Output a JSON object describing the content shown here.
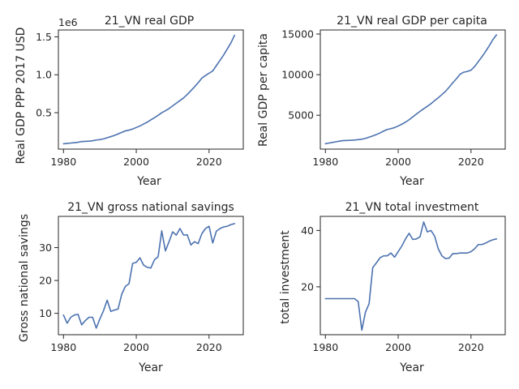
{
  "chart_data": [
    {
      "type": "line",
      "title": "21_VN real GDP",
      "xlabel": "Year",
      "ylabel": "Real GDP PPP 2017 USD",
      "offset_text": "1e6",
      "xlim": [
        1978.6,
        2029.4
      ],
      "ylim": [
        0.02,
        1.59
      ],
      "xticks": [
        1980,
        2000,
        2020
      ],
      "xticklabels": [
        "1980",
        "2000",
        "2020"
      ],
      "yticks": [
        0.5,
        1.0,
        1.5
      ],
      "yticklabels": [
        "0.5",
        "1.0",
        "1.5"
      ],
      "series": [
        {
          "x": [
            1980,
            1981,
            1982,
            1983,
            1984,
            1985,
            1986,
            1987,
            1988,
            1989,
            1990,
            1991,
            1992,
            1993,
            1994,
            1995,
            1996,
            1997,
            1998,
            1999,
            2000,
            2001,
            2002,
            2003,
            2004,
            2005,
            2006,
            2007,
            2008,
            2009,
            2010,
            2011,
            2012,
            2013,
            2014,
            2015,
            2016,
            2017,
            2018,
            2019,
            2020,
            2021,
            2022,
            2023,
            2024,
            2025,
            2026,
            2027
          ],
          "values": [
            0.09,
            0.095,
            0.1,
            0.105,
            0.11,
            0.12,
            0.122,
            0.125,
            0.13,
            0.14,
            0.145,
            0.155,
            0.17,
            0.185,
            0.2,
            0.22,
            0.24,
            0.26,
            0.27,
            0.285,
            0.305,
            0.325,
            0.35,
            0.375,
            0.405,
            0.435,
            0.465,
            0.5,
            0.525,
            0.555,
            0.59,
            0.625,
            0.66,
            0.695,
            0.74,
            0.79,
            0.84,
            0.895,
            0.955,
            0.99,
            1.02,
            1.05,
            1.12,
            1.19,
            1.26,
            1.34,
            1.42,
            1.52
          ]
        }
      ]
    },
    {
      "type": "line",
      "title": "21_VN real GDP per capita",
      "xlabel": "Year",
      "ylabel": "Real GDP per capita",
      "xlim": [
        1978.6,
        2029.4
      ],
      "ylim": [
        830,
        15500
      ],
      "xticks": [
        1980,
        2000,
        2020
      ],
      "xticklabels": [
        "1980",
        "2000",
        "2020"
      ],
      "yticks": [
        5000,
        10000,
        15000
      ],
      "yticklabels": [
        "5000",
        "10000",
        "15000"
      ],
      "series": [
        {
          "x": [
            1980,
            1981,
            1982,
            1983,
            1984,
            1985,
            1986,
            1987,
            1988,
            1989,
            1990,
            1991,
            1992,
            1993,
            1994,
            1995,
            1996,
            1997,
            1998,
            1999,
            2000,
            2001,
            2002,
            2003,
            2004,
            2005,
            2006,
            2007,
            2008,
            2009,
            2010,
            2011,
            2012,
            2013,
            2014,
            2015,
            2016,
            2017,
            2018,
            2019,
            2020,
            2021,
            2022,
            2023,
            2024,
            2025,
            2026,
            2027
          ],
          "values": [
            1500,
            1580,
            1660,
            1740,
            1820,
            1880,
            1900,
            1920,
            1950,
            2000,
            2050,
            2150,
            2300,
            2450,
            2620,
            2820,
            3050,
            3250,
            3350,
            3480,
            3680,
            3900,
            4150,
            4450,
            4800,
            5150,
            5480,
            5800,
            6100,
            6420,
            6800,
            7150,
            7550,
            7950,
            8450,
            9000,
            9500,
            10050,
            10300,
            10400,
            10550,
            11000,
            11600,
            12200,
            12850,
            13550,
            14300,
            14900
          ]
        }
      ]
    },
    {
      "type": "line",
      "title": "21_VN gross national savings",
      "xlabel": "Year",
      "ylabel": "Gross national savings",
      "xlim": [
        1978.6,
        2029.4
      ],
      "ylim": [
        3.5,
        39.5
      ],
      "xticks": [
        1980,
        2000,
        2020
      ],
      "xticklabels": [
        "1980",
        "2000",
        "2020"
      ],
      "yticks": [
        10,
        20,
        30
      ],
      "yticklabels": [
        "10",
        "20",
        "30"
      ],
      "series": [
        {
          "x": [
            1980,
            1981,
            1982,
            1983,
            1984,
            1985,
            1986,
            1987,
            1988,
            1989,
            1990,
            1991,
            1992,
            1993,
            1994,
            1995,
            1996,
            1997,
            1998,
            1999,
            2000,
            2001,
            2002,
            2003,
            2004,
            2005,
            2006,
            2007,
            2008,
            2009,
            2010,
            2011,
            2012,
            2013,
            2014,
            2015,
            2016,
            2017,
            2018,
            2019,
            2020,
            2021,
            2022,
            2023,
            2024,
            2025,
            2026,
            2027
          ],
          "values": [
            9.5,
            7.0,
            8.8,
            9.5,
            9.7,
            6.5,
            7.8,
            8.8,
            8.8,
            5.5,
            8.3,
            10.8,
            14.0,
            10.6,
            11.0,
            11.3,
            15.8,
            18.2,
            19.0,
            25.2,
            25.5,
            26.9,
            24.7,
            24.0,
            23.8,
            26.3,
            27.2,
            35.1,
            29.0,
            31.8,
            34.8,
            33.8,
            35.8,
            33.8,
            33.9,
            30.8,
            31.8,
            31.2,
            34.2,
            35.8,
            36.5,
            31.4,
            35.0,
            35.8,
            36.3,
            36.5,
            37.0,
            37.3
          ]
        }
      ]
    },
    {
      "type": "line",
      "title": "21_VN total investment",
      "xlabel": "Year",
      "ylabel": "total investment",
      "xlim": [
        1978.6,
        2029.4
      ],
      "ylim": [
        3.0,
        45.0
      ],
      "xticks": [
        1980,
        2000,
        2020
      ],
      "xticklabels": [
        "1980",
        "2000",
        "2020"
      ],
      "yticks": [
        20,
        40
      ],
      "yticklabels": [
        "20",
        "40"
      ],
      "series": [
        {
          "x": [
            1980,
            1981,
            1982,
            1983,
            1984,
            1985,
            1986,
            1987,
            1988,
            1989,
            1990,
            1991,
            1992,
            1993,
            1994,
            1995,
            1996,
            1997,
            1998,
            1999,
            2000,
            2001,
            2002,
            2003,
            2004,
            2005,
            2006,
            2007,
            2008,
            2009,
            2010,
            2011,
            2012,
            2013,
            2014,
            2015,
            2016,
            2017,
            2018,
            2019,
            2020,
            2021,
            2022,
            2023,
            2024,
            2025,
            2026,
            2027
          ],
          "values": [
            15.8,
            15.8,
            15.8,
            15.8,
            15.8,
            15.8,
            15.8,
            15.8,
            15.8,
            14.8,
            4.6,
            11.0,
            14.0,
            26.8,
            28.5,
            30.3,
            31.0,
            31.0,
            32.0,
            30.5,
            32.5,
            34.5,
            37.0,
            39.0,
            36.8,
            37.0,
            37.8,
            43.0,
            39.5,
            40.0,
            38.0,
            33.5,
            31.0,
            30.0,
            30.2,
            31.8,
            31.8,
            32.0,
            32.0,
            32.0,
            32.5,
            33.5,
            35.0,
            35.0,
            35.5,
            36.2,
            36.7,
            37.0
          ]
        }
      ]
    }
  ]
}
